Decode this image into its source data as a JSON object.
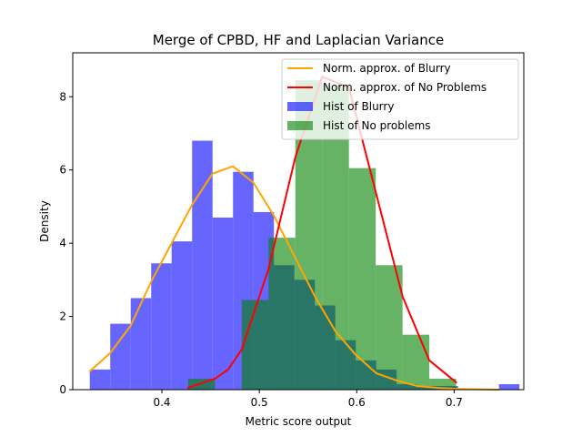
{
  "chart_data": {
    "type": "histogram",
    "title": "Merge of CPBD, HF and Laplacian Variance",
    "xlabel": "Metric score output",
    "ylabel": "Density",
    "xlim": [
      0.3085,
      0.7715
    ],
    "ylim": [
      0,
      9.2
    ],
    "xticks": [
      0.4,
      0.5,
      0.6,
      0.7
    ],
    "yticks": [
      0,
      2,
      4,
      6,
      8
    ],
    "xtick_labels": [
      "0.4",
      "0.5",
      "0.6",
      "0.7"
    ],
    "ytick_labels": [
      "0",
      "2",
      "4",
      "6",
      "8"
    ],
    "grid": false,
    "legend_position": "top-right",
    "histograms": [
      {
        "name": "Hist of Blurry",
        "color": "#0000ff",
        "alpha": 0.6,
        "bin_edges": [
          0.326,
          0.347,
          0.368,
          0.389,
          0.41,
          0.431,
          0.452,
          0.473,
          0.494,
          0.515,
          0.536,
          0.557,
          0.578,
          0.599,
          0.62,
          0.641,
          0.662,
          0.683,
          0.704,
          0.725,
          0.746,
          0.767
        ],
        "densities": [
          0.55,
          1.8,
          2.5,
          3.45,
          4.05,
          6.8,
          4.7,
          5.95,
          4.85,
          3.4,
          3.0,
          2.3,
          1.35,
          0.8,
          0.55,
          0.15,
          0.1,
          0.1,
          0.0,
          0.0,
          0.15
        ]
      },
      {
        "name": "Hist of No problems",
        "color": "#008000",
        "alpha": 0.6,
        "bin_edges": [
          0.427,
          0.4545,
          0.482,
          0.5095,
          0.537,
          0.5645,
          0.592,
          0.6195,
          0.647,
          0.6745,
          0.702
        ],
        "densities": [
          0.3,
          0.0,
          2.45,
          4.15,
          8.45,
          8.3,
          6.05,
          3.4,
          1.5,
          0.3
        ]
      }
    ],
    "series": [
      {
        "name": "Norm. approx. of Blurry",
        "color": "#ffa500",
        "x": [
          0.326,
          0.347,
          0.368,
          0.389,
          0.41,
          0.431,
          0.452,
          0.473,
          0.494,
          0.515,
          0.536,
          0.557,
          0.578,
          0.599,
          0.62,
          0.641,
          0.662,
          0.683,
          0.704,
          0.725,
          0.746
        ],
        "y": [
          0.5,
          1.0,
          1.75,
          2.95,
          4.0,
          5.05,
          5.9,
          6.1,
          5.65,
          4.75,
          3.65,
          2.55,
          1.6,
          0.95,
          0.45,
          0.25,
          0.1,
          0.05,
          0.02,
          0.01,
          0.0
        ]
      },
      {
        "name": "Norm. approx. of No Problems",
        "color": "#ff0000",
        "x": [
          0.427,
          0.4545,
          0.468,
          0.482,
          0.5095,
          0.537,
          0.5645,
          0.592,
          0.6195,
          0.647,
          0.6745,
          0.702
        ],
        "y": [
          0.05,
          0.3,
          0.55,
          1.1,
          3.3,
          6.35,
          8.55,
          8.25,
          5.4,
          2.55,
          0.8,
          0.2
        ]
      }
    ],
    "legend_order": [
      "Norm. approx. of Blurry",
      "Norm. approx. of No Problems",
      "Hist of Blurry",
      "Hist of No problems"
    ]
  }
}
